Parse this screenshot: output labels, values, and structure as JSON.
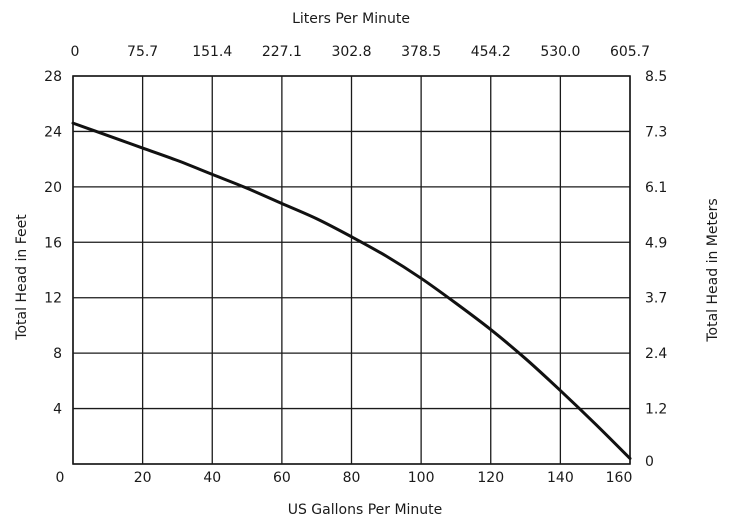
{
  "chart_data": {
    "type": "line",
    "xlabel": "US Gallons Per Minute",
    "ylabel": "Total Head in Feet",
    "x2label": "Liters Per Minute",
    "y2label": "Total Head in Meters",
    "xlim": [
      0,
      160
    ],
    "ylim": [
      0,
      28
    ],
    "x_ticks": [
      0,
      20,
      40,
      60,
      80,
      100,
      120,
      140,
      160
    ],
    "y_ticks": [
      0,
      4,
      8,
      12,
      16,
      20,
      24,
      28
    ],
    "x2_ticks": [
      "0",
      "75.7",
      "151.4",
      "227.1",
      "302.8",
      "378.5",
      "454.2",
      "530.0",
      "605.7"
    ],
    "y2_ticks": [
      "0",
      "1.2",
      "2.4",
      "3.7",
      "4.9",
      "6.1",
      "7.3",
      "8.5"
    ],
    "grid": true,
    "series": [
      {
        "color": "#111111",
        "x": [
          0,
          10,
          20,
          30,
          40,
          50,
          60,
          70,
          80,
          90,
          100,
          110,
          120,
          130,
          140,
          150,
          160
        ],
        "y": [
          24.6,
          23.7,
          22.8,
          21.9,
          20.9,
          19.9,
          18.8,
          17.7,
          16.4,
          15.0,
          13.4,
          11.6,
          9.7,
          7.6,
          5.3,
          2.9,
          0.4
        ]
      }
    ]
  }
}
